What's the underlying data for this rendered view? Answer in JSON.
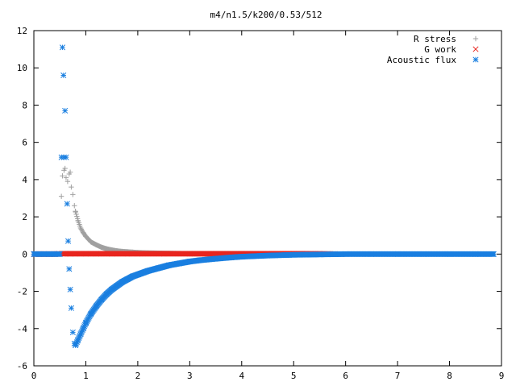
{
  "chart_data": {
    "type": "scatter",
    "title": "m4/n1.5/k200/0.53/512",
    "xlabel": "",
    "ylabel": "",
    "xlim": [
      0,
      9
    ],
    "ylim": [
      -6,
      12
    ],
    "x_ticks": [
      0,
      1,
      2,
      3,
      4,
      5,
      6,
      7,
      8,
      9
    ],
    "y_ticks": [
      -6,
      -4,
      -2,
      0,
      2,
      4,
      6,
      8,
      10,
      12
    ],
    "x_tick_labels": [
      "0",
      "1",
      "2",
      "3",
      "4",
      "5",
      "6",
      "7",
      "8",
      "9"
    ],
    "y_tick_labels": [
      "-6",
      "-4",
      "-2",
      "0",
      "2",
      "4",
      "6",
      "8",
      "10",
      "12"
    ],
    "grid": false,
    "legend_position": "top-right",
    "series": [
      {
        "name": "R stress",
        "marker": "plus",
        "color": "#a0a0a0",
        "x": [
          0.0,
          0.1,
          0.2,
          0.3,
          0.4,
          0.5,
          0.53,
          0.55,
          0.58,
          0.6,
          0.62,
          0.65,
          0.68,
          0.7,
          0.72,
          0.75,
          0.78,
          0.8,
          0.85,
          0.9,
          0.95,
          1.0,
          1.05,
          1.1,
          1.2,
          1.3,
          1.4,
          1.5,
          1.6,
          1.7,
          1.8,
          1.9,
          2.0,
          2.2,
          2.4,
          2.6,
          2.8,
          3.0,
          3.5,
          4.0,
          4.5,
          5.0,
          5.5,
          6.0,
          7.0,
          8.0,
          8.85
        ],
        "y": [
          0,
          0,
          0,
          0,
          0,
          0,
          3.1,
          4.2,
          4.5,
          4.6,
          4.1,
          3.9,
          4.3,
          4.4,
          3.6,
          3.2,
          2.6,
          2.3,
          1.8,
          1.4,
          1.15,
          0.95,
          0.8,
          0.65,
          0.5,
          0.37,
          0.28,
          0.22,
          0.17,
          0.14,
          0.12,
          0.1,
          0.08,
          0.06,
          0.05,
          0.04,
          0.03,
          0.02,
          0.01,
          0.0,
          0.0,
          0.0,
          0.0,
          0.0,
          0.0,
          0.0,
          0.0
        ]
      },
      {
        "name": "G work",
        "marker": "cross",
        "color": "#e8261f",
        "x": [
          0.0,
          0.2,
          0.4,
          0.53,
          0.6,
          0.7,
          0.8,
          1.0,
          1.2,
          1.5,
          1.8,
          2.0,
          2.5,
          3.0,
          3.5,
          4.0,
          4.5,
          5.0,
          5.5,
          5.8
        ],
        "y": [
          0,
          0,
          0,
          0.02,
          0.02,
          0.02,
          0.02,
          0.02,
          0.02,
          0.02,
          0.02,
          0.02,
          0.02,
          0.02,
          0.02,
          0.02,
          0.02,
          0.02,
          0.01,
          0.0
        ]
      },
      {
        "name": "Acoustic flux",
        "marker": "star",
        "color": "#1a7fe0",
        "x": [
          0.0,
          0.1,
          0.2,
          0.3,
          0.4,
          0.5,
          0.53,
          0.55,
          0.57,
          0.58,
          0.6,
          0.62,
          0.64,
          0.66,
          0.68,
          0.7,
          0.72,
          0.75,
          0.78,
          0.8,
          0.85,
          0.9,
          0.95,
          1.0,
          1.1,
          1.2,
          1.3,
          1.4,
          1.5,
          1.6,
          1.7,
          1.8,
          1.9,
          2.0,
          2.2,
          2.4,
          2.6,
          2.8,
          3.0,
          3.2,
          3.5,
          3.8,
          4.0,
          4.5,
          5.0,
          5.5,
          6.0,
          6.5,
          7.0,
          7.5,
          8.0,
          8.5,
          8.85
        ],
        "y": [
          0,
          0,
          0,
          0,
          0,
          0,
          5.2,
          11.1,
          9.6,
          5.2,
          7.7,
          5.2,
          2.7,
          0.7,
          -0.8,
          -1.9,
          -2.9,
          -4.2,
          -4.8,
          -4.9,
          -4.6,
          -4.3,
          -4.0,
          -3.7,
          -3.2,
          -2.8,
          -2.45,
          -2.15,
          -1.9,
          -1.7,
          -1.5,
          -1.35,
          -1.2,
          -1.1,
          -0.9,
          -0.75,
          -0.6,
          -0.5,
          -0.4,
          -0.33,
          -0.25,
          -0.18,
          -0.14,
          -0.08,
          -0.04,
          -0.02,
          0.0,
          0.0,
          0.0,
          0.0,
          0.0,
          0.0,
          0.0
        ]
      }
    ]
  }
}
